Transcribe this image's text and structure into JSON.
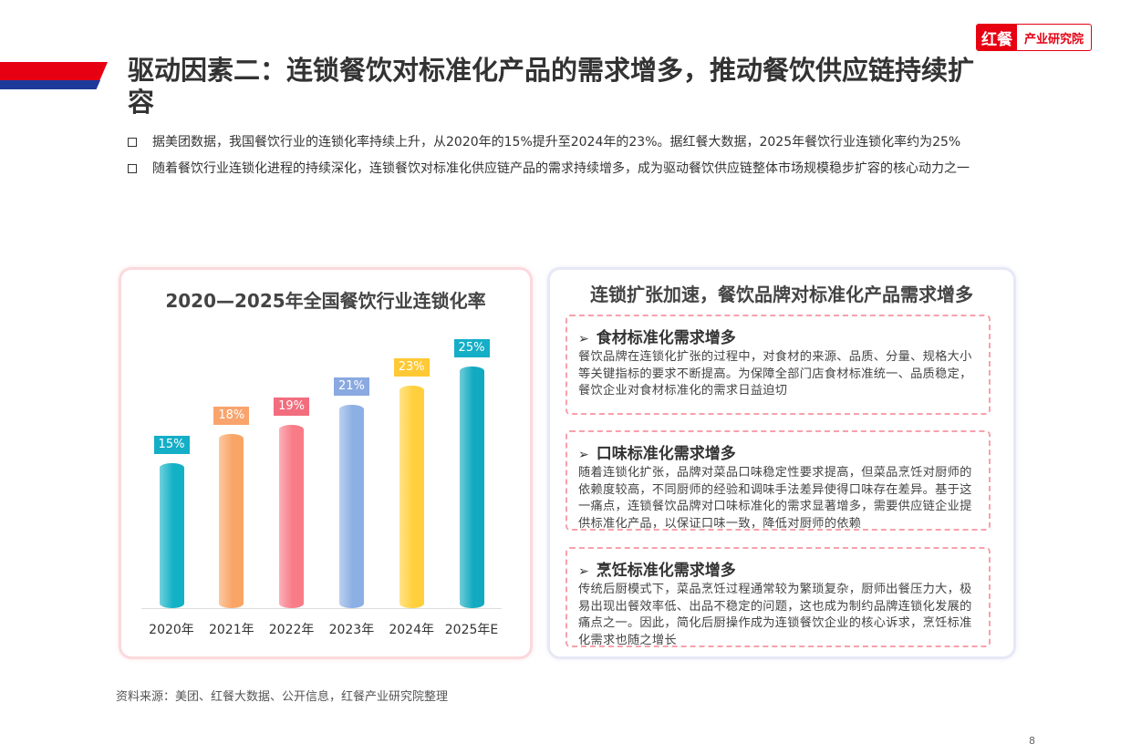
{
  "logo": {
    "part1": "红餐",
    "part2": "产业研究院"
  },
  "title": "驱动因素二：连锁餐饮对标准化产品的需求增多，推动餐饮供应链持续扩容",
  "bullets": [
    "据美团数据，我国餐饮行业的连锁化率持续上升，从2020年的15%提升至2024年的23%。据红餐大数据，2025年餐饮行业连锁化率约为25%",
    "随着餐饮行业连锁化进程的持续深化，连锁餐饮对标准化供应链产品的需求持续增多，成为驱动餐饮供应链整体市场规模稳步扩容的核心动力之一"
  ],
  "chart_data": {
    "type": "bar",
    "title": "2020—2025年全国餐饮行业连锁化率",
    "categories": [
      "2020年",
      "2021年",
      "2022年",
      "2023年",
      "2024年",
      "2025年E"
    ],
    "values": [
      15,
      18,
      19,
      21,
      23,
      25
    ],
    "labels": [
      "15%",
      "18%",
      "19%",
      "21%",
      "23%",
      "25%"
    ],
    "colors": [
      "#13b1c6",
      "#f9a566",
      "#f77c88",
      "#8cafe4",
      "#ffd03c",
      "#12aac0"
    ],
    "label_colors": [
      "#14aec6",
      "#f9a46c",
      "#f26d7e",
      "#8aa9e0",
      "#ffc935",
      "#14aec6"
    ],
    "xlabel": "",
    "ylabel": "",
    "ylim": [
      0,
      25
    ]
  },
  "right_panel": {
    "title": "连锁扩张加速，餐饮品牌对标准化产品需求增多",
    "sections": [
      {
        "arrow": "➢",
        "heading": "食材标准化需求增多",
        "text": "餐饮品牌在连锁化扩张的过程中，对食材的来源、品质、分量、规格大小等关键指标的要求不断提高。为保障全部门店食材标准统一、品质稳定，餐饮企业对食材标准化的需求日益迫切"
      },
      {
        "arrow": "➢",
        "heading": "口味标准化需求增多",
        "text": "随着连锁化扩张，品牌对菜品口味稳定性要求提高，但菜品烹饪对厨师的依赖度较高，不同厨师的经验和调味手法差异使得口味存在差异。基于这一痛点，连锁餐饮品牌对口味标准化的需求显著增多，需要供应链企业提供标准化产品，以保证口味一致，降低对厨师的依赖"
      },
      {
        "arrow": "➢",
        "heading": "烹饪标准化需求增多",
        "text": "传统后厨模式下，菜品烹饪过程通常较为繁琐复杂，厨师出餐压力大，极易出现出餐效率低、出品不稳定的问题，这也成为制约品牌连锁化发展的痛点之一。因此，简化后厨操作成为连锁餐饮企业的核心诉求，烹饪标准化需求也随之增长"
      }
    ]
  },
  "source": "资料来源：美团、红餐大数据、公开信息，红餐产业研究院整理",
  "page_number": "8"
}
